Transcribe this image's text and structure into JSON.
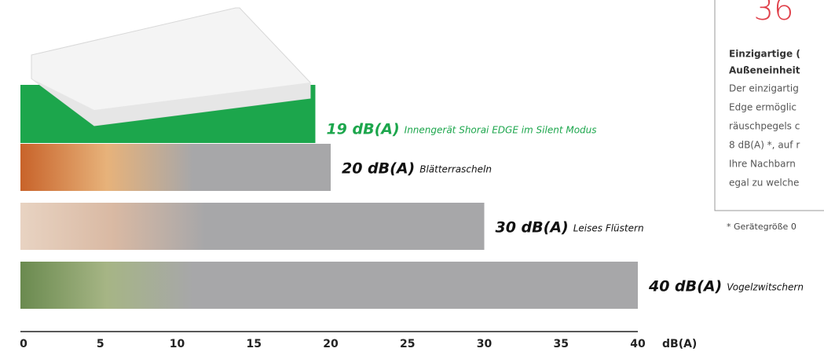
{
  "chart_data": {
    "type": "hbar",
    "categories": [
      "Innengerät Shorai EDGE im Silent Modus",
      "Blätterrascheln",
      "Leises Flüstern",
      "Vogelzwitschern"
    ],
    "values": [
      19,
      20,
      30,
      40
    ],
    "value_labels": [
      "19 dB(A)",
      "20 dB(A)",
      "30 dB(A)",
      "40 dB(A)"
    ],
    "colors": [
      "#1ca64c",
      "#a7a7a9",
      "#a7a7a9",
      "#a7a7a9"
    ],
    "label_colors": [
      "#1ca64c",
      "#111111",
      "#111111",
      "#111111"
    ],
    "xlim": [
      0,
      40
    ],
    "xticks": [
      0,
      5,
      10,
      15,
      20,
      25,
      30,
      35,
      40
    ],
    "xlabel": "dB(A)"
  },
  "sidebar": {
    "number": "36",
    "heading": [
      "Einzigartige (",
      "Außeneinheit"
    ],
    "text": [
      "Der einzigartig",
      "Edge ermöglic",
      "räuschpegels c",
      "8 dB(A) *, auf r",
      "Ihre Nachbarn",
      "egal zu welche"
    ],
    "footnote": "* Gerätegröße 0"
  }
}
